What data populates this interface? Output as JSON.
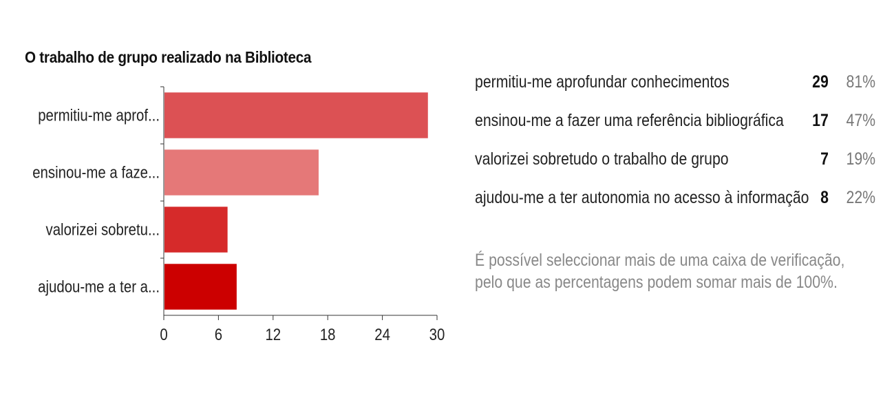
{
  "chart_data": {
    "type": "bar",
    "orientation": "horizontal",
    "title": "O trabalho de grupo realizado na Biblioteca",
    "categories": [
      "permitiu-me aprof...",
      "ensinou-me a faze...",
      "valorizei sobretu...",
      "ajudou-me a ter a..."
    ],
    "values": [
      29,
      17,
      7,
      8
    ],
    "colors": [
      "#dc5154",
      "#e57878",
      "#d62a2a",
      "#cc0000"
    ],
    "xlim": [
      0,
      30
    ],
    "x_ticks": [
      "0",
      "6",
      "12",
      "18",
      "24",
      "30"
    ],
    "grid": false,
    "legend": "none"
  },
  "summary": {
    "rows": [
      {
        "label": "permitiu-me aprofundar conhecimentos",
        "count": "29",
        "percent": "81%"
      },
      {
        "label": "ensinou-me a fazer uma referência bibliográfica",
        "count": "17",
        "percent": "47%"
      },
      {
        "label": "valorizei sobretudo o trabalho de grupo",
        "count": "7",
        "percent": "19%"
      },
      {
        "label": "ajudou-me a ter autonomia no acesso à informação",
        "count": "8",
        "percent": "22%"
      }
    ],
    "note": "É possível seleccionar mais de uma caixa de verificação, pelo que as percentagens podem somar mais de 100%."
  }
}
